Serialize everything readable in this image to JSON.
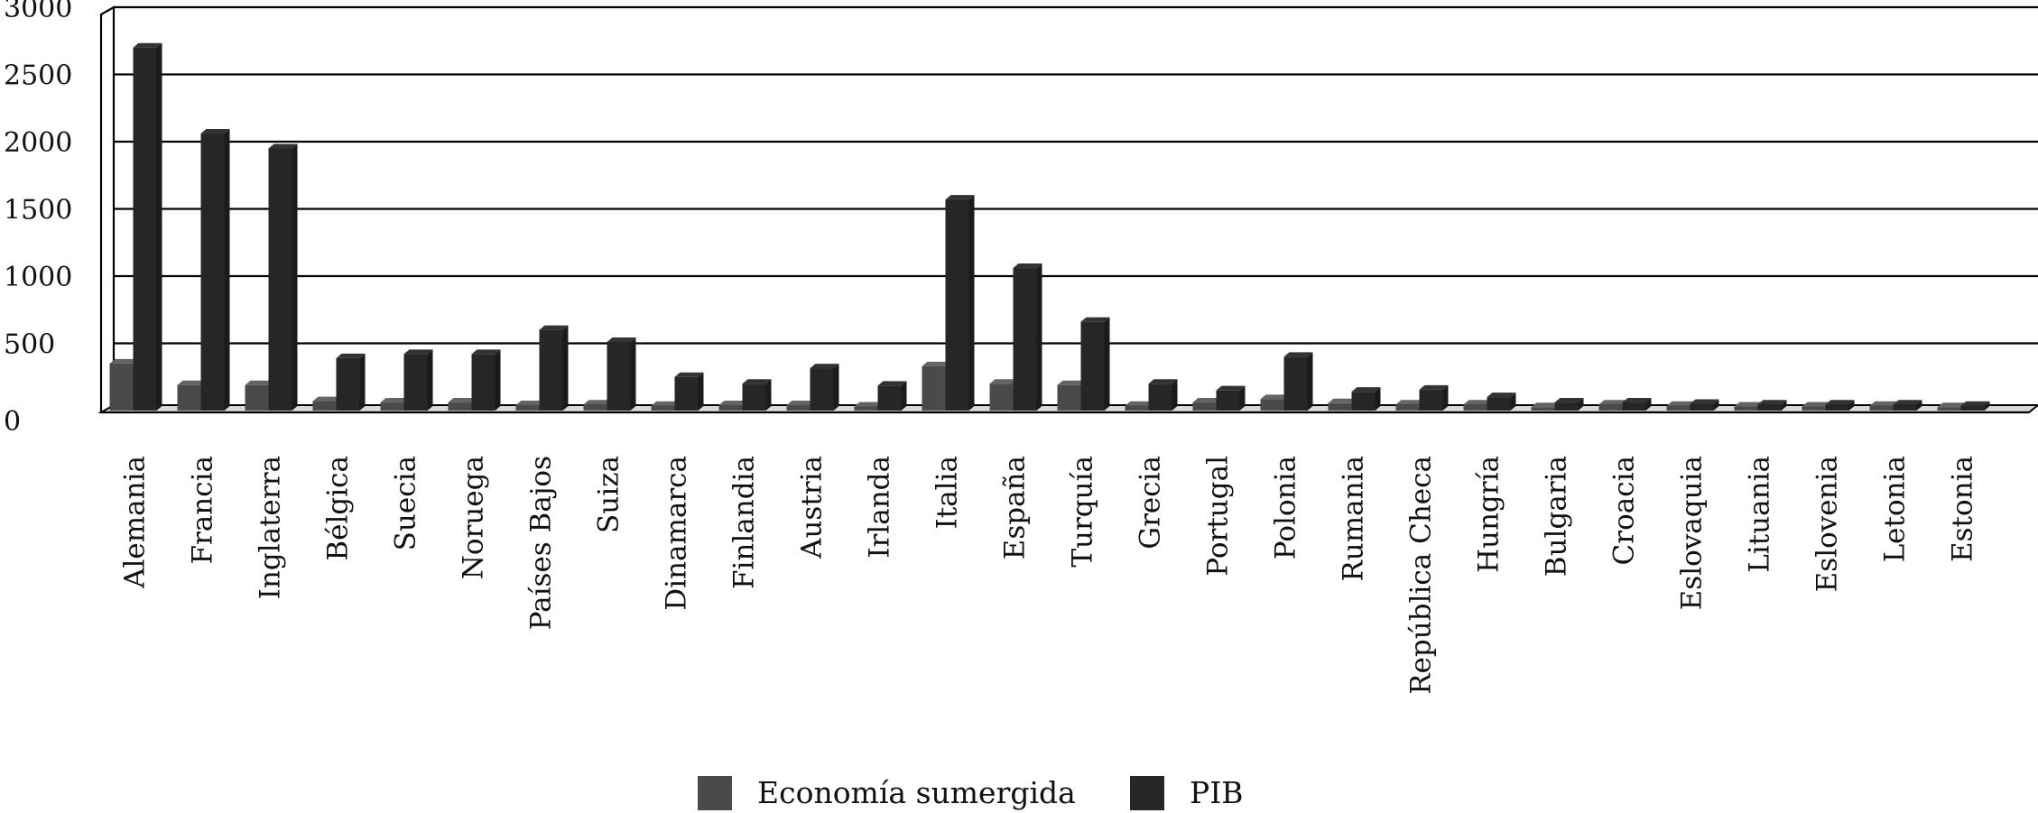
{
  "chart_data": {
    "type": "bar",
    "title": "",
    "xlabel": "",
    "ylabel": "",
    "ylim": [
      0,
      3000
    ],
    "yticks": [
      0,
      500,
      1000,
      1500,
      2000,
      2500,
      3000
    ],
    "grid": "horizontal",
    "legend_position": "bottom",
    "categories": [
      "Alemania",
      "Francia",
      "Inglaterra",
      "Bélgica",
      "Suecia",
      "Noruega",
      "Países Bajos",
      "Suiza",
      "Dinamarca",
      "Finlandia",
      "Austria",
      "Irlanda",
      "Italia",
      "España",
      "Turquía",
      "Grecia",
      "Portugal",
      "Polonia",
      "Rumania",
      "República Checa",
      "Hungría",
      "Bulgaria",
      "Croacia",
      "Eslovaquia",
      "Lituania",
      "Eslovenia",
      "Letonia",
      "Estonia"
    ],
    "series": [
      {
        "name": "Economía sumergida",
        "color": "#4a4a4a",
        "values": [
          350,
          190,
          190,
          70,
          60,
          60,
          40,
          45,
          35,
          40,
          40,
          30,
          330,
          200,
          190,
          35,
          60,
          85,
          55,
          45,
          45,
          25,
          45,
          35,
          30,
          30,
          35,
          25
        ]
      },
      {
        "name": "PIB",
        "color": "#262626",
        "values": [
          2700,
          2060,
          1950,
          390,
          420,
          420,
          600,
          510,
          250,
          200,
          315,
          185,
          1570,
          1060,
          660,
          200,
          150,
          400,
          140,
          155,
          100,
          60,
          60,
          50,
          45,
          45,
          45,
          35
        ]
      }
    ]
  }
}
